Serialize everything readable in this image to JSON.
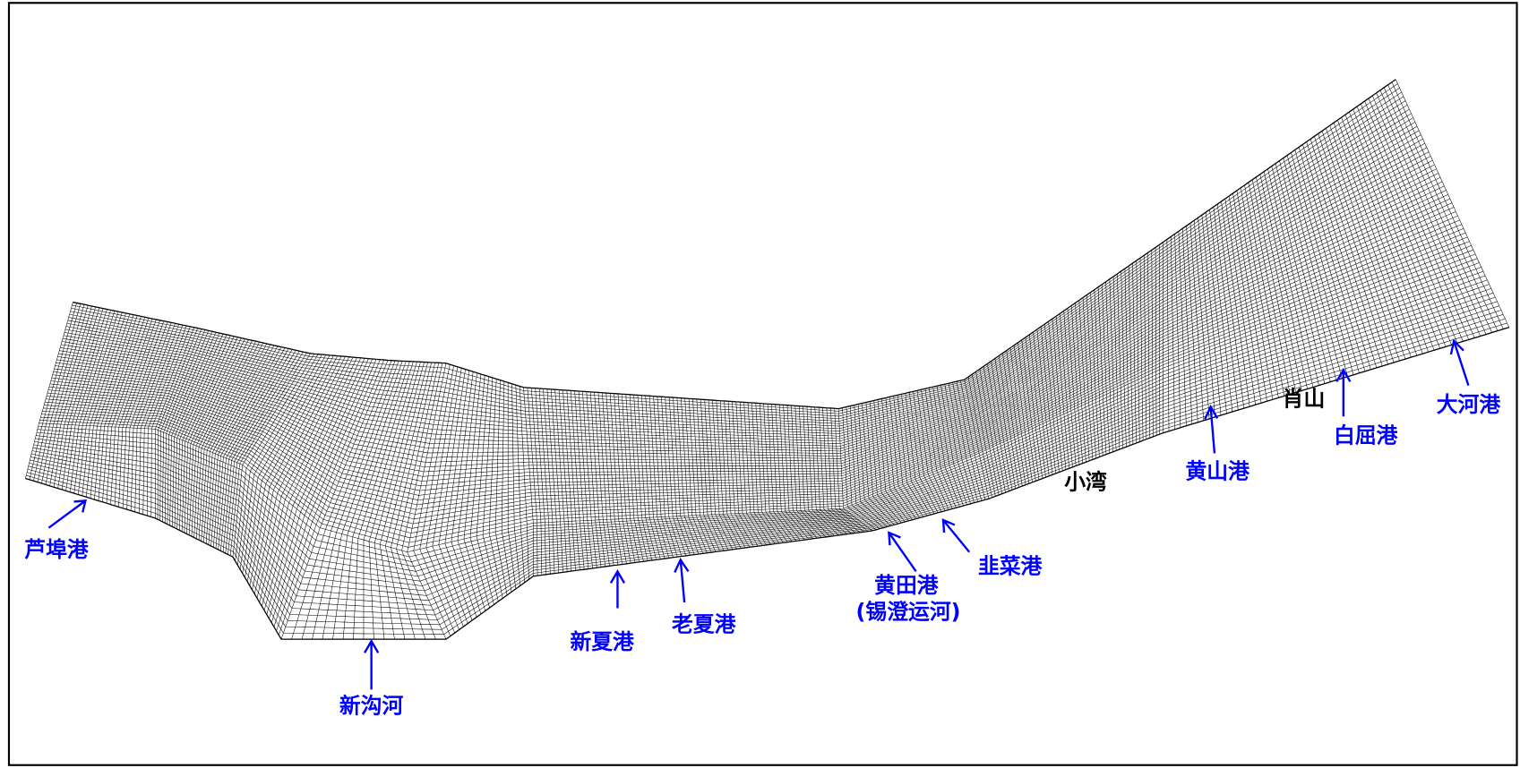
{
  "labels": [
    {
      "text": "芦埠港",
      "color": "#0000ff"
    },
    {
      "text": "新沟河",
      "color": "#0000ff"
    },
    {
      "text": "新夏港",
      "color": "#0000ff"
    },
    {
      "text": "老夏港",
      "color": "#0000ff"
    },
    {
      "text": "黄田港",
      "color": "#0000ff"
    },
    {
      "text": "(锡澄运河)",
      "color": "#0000ff"
    },
    {
      "text": "韭菜港",
      "color": "#0000ff"
    },
    {
      "text": "小湾",
      "color": "#000000"
    },
    {
      "text": "黄山港",
      "color": "#0000ff"
    },
    {
      "text": "肖山",
      "color": "#000000"
    },
    {
      "text": "白屈港",
      "color": "#0000ff"
    },
    {
      "text": "大河港",
      "color": "#0000ff"
    }
  ]
}
